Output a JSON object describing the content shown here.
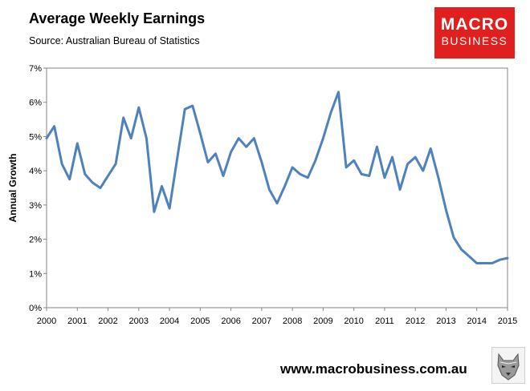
{
  "header": {
    "title": "Average Weekly Earnings",
    "subtitle": "Source: Australian Bureau of Statistics"
  },
  "logo": {
    "line1": "MACRO",
    "line2": "BUSINESS",
    "color": "#e0201f"
  },
  "footer": {
    "url": "www.macrobusiness.com.au"
  },
  "chart_data": {
    "type": "line",
    "title": "Average Weekly Earnings",
    "subtitle": "Source: Australian Bureau of Statistics",
    "xlabel": "",
    "ylabel": "Annual Growth",
    "xlim": [
      2000,
      2015
    ],
    "ylim": [
      0,
      7
    ],
    "x_ticks": [
      "2000",
      "2001",
      "2002",
      "2003",
      "2004",
      "2005",
      "2006",
      "2007",
      "2008",
      "2009",
      "2010",
      "2011",
      "2012",
      "2013",
      "2014",
      "2015"
    ],
    "y_ticks": [
      "0%",
      "1%",
      "2%",
      "3%",
      "4%",
      "5%",
      "6%",
      "7%"
    ],
    "grid": false,
    "line_color": "#4f81bd",
    "series": [
      {
        "x": [
          2000.0,
          2000.25,
          2000.5,
          2000.75,
          2001.0,
          2001.25,
          2001.5,
          2001.75,
          2002.0,
          2002.25,
          2002.5,
          2002.75,
          2003.0,
          2003.25,
          2003.5,
          2003.75,
          2004.0,
          2004.25,
          2004.5,
          2004.75,
          2005.0,
          2005.25,
          2005.5,
          2005.75,
          2006.0,
          2006.25,
          2006.5,
          2006.75,
          2007.0,
          2007.25,
          2007.5,
          2007.75,
          2008.0,
          2008.25,
          2008.5,
          2008.75,
          2009.0,
          2009.25,
          2009.5,
          2009.75,
          2010.0,
          2010.25,
          2010.5,
          2010.75,
          2011.0,
          2011.25,
          2011.5,
          2011.75,
          2012.0,
          2012.25,
          2012.5,
          2012.75,
          2013.0,
          2013.25,
          2013.5,
          2013.75,
          2014.0,
          2014.25,
          2014.5,
          2014.75,
          2015.0
        ],
        "values": [
          4.95,
          5.3,
          4.2,
          3.75,
          4.8,
          3.9,
          3.65,
          3.5,
          3.85,
          4.2,
          5.55,
          4.95,
          5.85,
          4.95,
          2.8,
          3.55,
          2.9,
          4.35,
          5.8,
          5.9,
          5.1,
          4.25,
          4.5,
          3.85,
          4.55,
          4.95,
          4.7,
          4.95,
          4.25,
          3.45,
          3.05,
          3.55,
          4.1,
          3.9,
          3.8,
          4.3,
          4.95,
          5.7,
          6.3,
          4.1,
          4.3,
          3.9,
          3.85,
          4.7,
          3.8,
          4.4,
          3.45,
          4.2,
          4.4,
          4.0,
          4.65,
          3.8,
          2.85,
          2.05,
          1.7,
          1.5,
          1.3,
          1.3,
          1.3,
          1.4,
          1.45
        ]
      }
    ]
  }
}
